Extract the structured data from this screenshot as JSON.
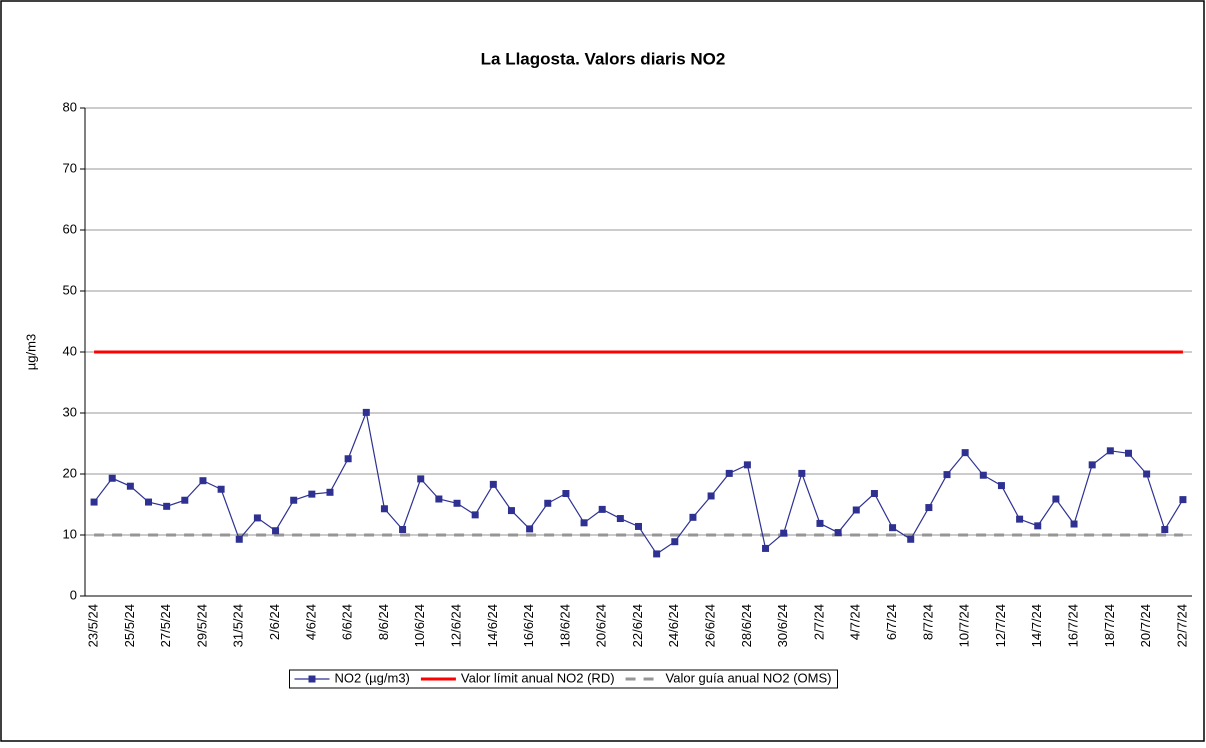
{
  "chart_data": {
    "type": "line",
    "title": "La Llagosta. Valors diaris NO2",
    "y_label": "µg/m3",
    "categories": [
      "23/5/24",
      null,
      "25/5/24",
      null,
      "27/5/24",
      null,
      "29/5/24",
      null,
      "31/5/24",
      null,
      "2/6/24",
      null,
      "4/6/24",
      null,
      "6/6/24",
      null,
      "8/6/24",
      null,
      "10/6/24",
      null,
      "12/6/24",
      null,
      "14/6/24",
      null,
      "16/6/24",
      null,
      "18/6/24",
      null,
      "20/6/24",
      null,
      "22/6/24",
      null,
      "24/6/24",
      null,
      "26/6/24",
      null,
      "28/6/24",
      null,
      "30/6/24",
      null,
      "2/7/24",
      null,
      "4/7/24",
      null,
      "6/7/24",
      null,
      "8/7/24",
      null,
      "10/7/24",
      null,
      "12/7/24",
      null,
      "14/7/24",
      null,
      "16/7/24",
      null,
      "18/7/24",
      null,
      "20/7/24",
      null,
      "22/7/24"
    ],
    "series": [
      {
        "name": "NO2 (µg/m3)",
        "color": "#2e3192",
        "marker": "square",
        "line_style": "solid",
        "values": [
          15.4,
          19.3,
          18,
          15.4,
          14.7,
          15.7,
          18.9,
          17.5,
          9.3,
          12.8,
          10.7,
          15.7,
          16.7,
          17,
          22.5,
          30.1,
          14.3,
          10.9,
          19.2,
          15.9,
          15.2,
          13.3,
          18.3,
          14,
          11,
          15.2,
          16.8,
          12,
          14.2,
          12.7,
          11.4,
          6.9,
          8.9,
          12.9,
          16.4,
          20.1,
          21.5,
          7.8,
          10.3,
          20.1,
          11.9,
          10.4,
          14.1,
          16.8,
          11.2,
          9.3,
          14.5,
          19.9,
          23.5,
          19.8,
          18.1,
          12.6,
          11.5,
          15.9,
          11.8,
          21.5,
          23.8,
          23.4,
          20,
          10.9,
          15.8
        ]
      },
      {
        "name": "Valor límit anual NO2 (RD)",
        "color": "#ff0000",
        "marker": "none",
        "line_style": "solid",
        "values": [
          40,
          40,
          40,
          40,
          40,
          40,
          40,
          40,
          40,
          40,
          40,
          40,
          40,
          40,
          40,
          40,
          40,
          40,
          40,
          40,
          40,
          40,
          40,
          40,
          40,
          40,
          40,
          40,
          40,
          40,
          40,
          40,
          40,
          40,
          40,
          40,
          40,
          40,
          40,
          40,
          40,
          40,
          40,
          40,
          40,
          40,
          40,
          40,
          40,
          40,
          40,
          40,
          40,
          40,
          40,
          40,
          40,
          40,
          40,
          40,
          40
        ]
      },
      {
        "name": "Valor guía anual NO2 (OMS)",
        "color": "#969696",
        "marker": "none",
        "line_style": "dashed",
        "values": [
          10,
          10,
          10,
          10,
          10,
          10,
          10,
          10,
          10,
          10,
          10,
          10,
          10,
          10,
          10,
          10,
          10,
          10,
          10,
          10,
          10,
          10,
          10,
          10,
          10,
          10,
          10,
          10,
          10,
          10,
          10,
          10,
          10,
          10,
          10,
          10,
          10,
          10,
          10,
          10,
          10,
          10,
          10,
          10,
          10,
          10,
          10,
          10,
          10,
          10,
          10,
          10,
          10,
          10,
          10,
          10,
          10,
          10,
          10,
          10,
          10
        ]
      }
    ],
    "ylim": [
      0,
      80
    ],
    "yticks": [
      0,
      10,
      20,
      30,
      40,
      50,
      60,
      70,
      80
    ],
    "grid": true,
    "legend": "bottom"
  }
}
